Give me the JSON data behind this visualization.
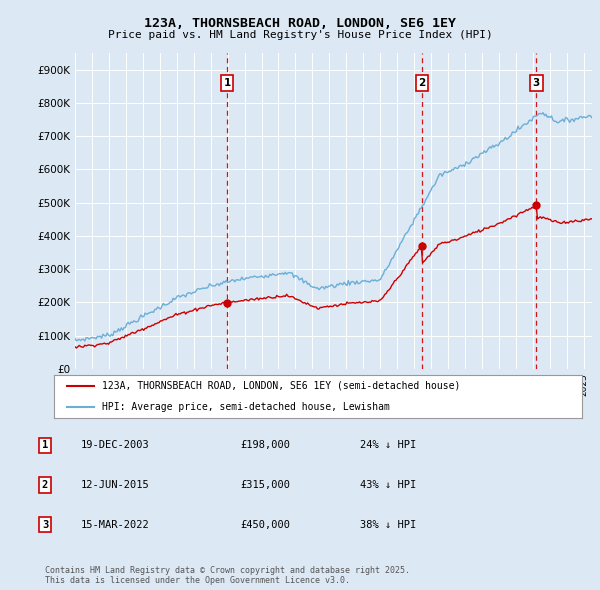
{
  "title": "123A, THORNSBEACH ROAD, LONDON, SE6 1EY",
  "subtitle": "Price paid vs. HM Land Registry's House Price Index (HPI)",
  "bg_color": "#dce8f4",
  "plot_bg_color": "#dce8f4",
  "grid_color": "#ffffff",
  "ylim": [
    0,
    950000
  ],
  "yticks": [
    0,
    100000,
    200000,
    300000,
    400000,
    500000,
    600000,
    700000,
    800000,
    900000
  ],
  "ytick_labels": [
    "£0",
    "£100K",
    "£200K",
    "£300K",
    "£400K",
    "£500K",
    "£600K",
    "£700K",
    "£800K",
    "£900K"
  ],
  "hpi_color": "#6baed6",
  "price_color": "#cc0000",
  "vline_color": "#cc0000",
  "dot_color": "#cc0000",
  "transactions": [
    {
      "date": 2003.97,
      "price": 198000,
      "label": "1"
    },
    {
      "date": 2015.45,
      "price": 315000,
      "label": "2"
    },
    {
      "date": 2022.21,
      "price": 450000,
      "label": "3"
    }
  ],
  "legend_entries": [
    "123A, THORNSBEACH ROAD, LONDON, SE6 1EY (semi-detached house)",
    "HPI: Average price, semi-detached house, Lewisham"
  ],
  "table_rows": [
    {
      "num": "1",
      "date": "19-DEC-2003",
      "price": "£198,000",
      "pct": "24% ↓ HPI"
    },
    {
      "num": "2",
      "date": "12-JUN-2015",
      "price": "£315,000",
      "pct": "43% ↓ HPI"
    },
    {
      "num": "3",
      "date": "15-MAR-2022",
      "price": "£450,000",
      "pct": "38% ↓ HPI"
    }
  ],
  "footnote": "Contains HM Land Registry data © Crown copyright and database right 2025.\nThis data is licensed under the Open Government Licence v3.0.",
  "xmin": 1995,
  "xmax": 2025.5
}
